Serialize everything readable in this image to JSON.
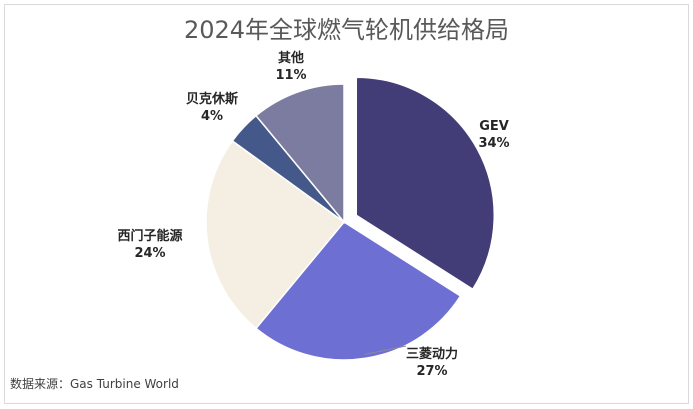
{
  "chart_data": {
    "type": "pie",
    "title": "2024年全球燃气轮机供给格局",
    "categories": [
      "GEV",
      "三菱动力",
      "西门子能源",
      "贝克休斯",
      "其他"
    ],
    "values": [
      34,
      27,
      24,
      4,
      11
    ],
    "value_labels": [
      "34%",
      "27%",
      "24%",
      "4%",
      "11%"
    ],
    "exploded": [
      "GEV"
    ],
    "colors": [
      "#423d76",
      "#6e6fd3",
      "#f5efe3",
      "#44598a",
      "#7c7ca0"
    ],
    "start_angle_deg": 0,
    "direction": "clockwise"
  },
  "footer": {
    "source": "数据来源：Gas Turbine World"
  }
}
